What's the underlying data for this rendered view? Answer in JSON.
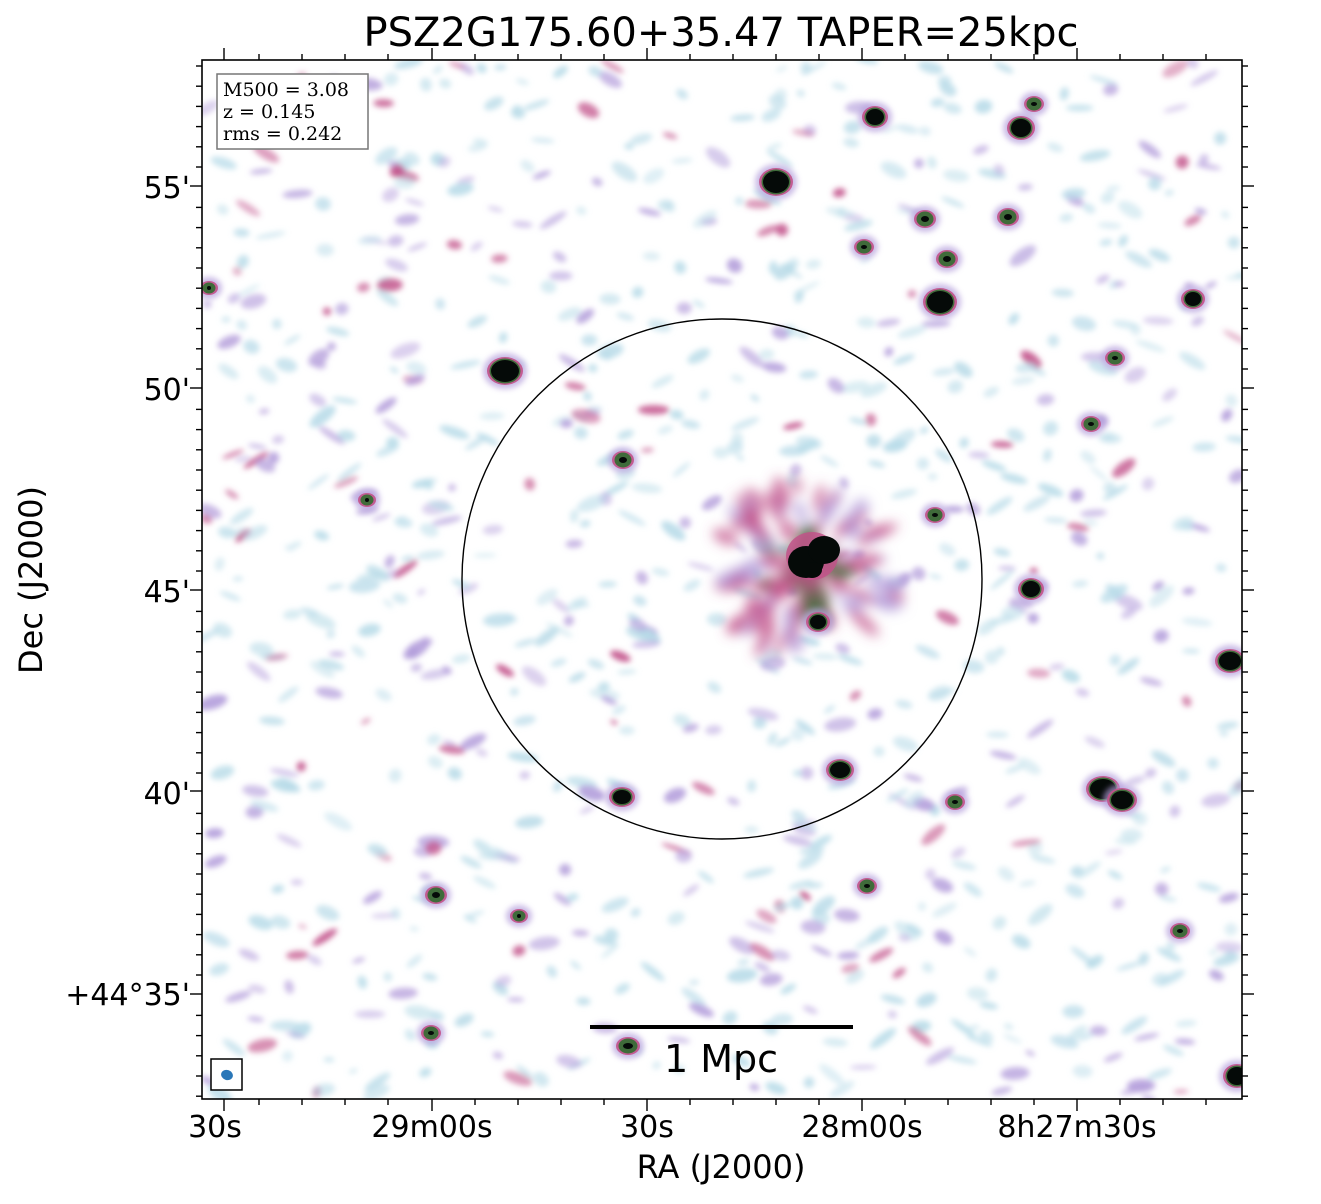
{
  "title": "PSZ2G175.60+35.47 TAPER=25kpc",
  "info_box": {
    "m500": "M500 = 3.08",
    "z": "z = 0.145",
    "rms": "rms = 0.242"
  },
  "x_axis": {
    "label": "RA (J2000)",
    "ticks": [
      "30s",
      "29m00s",
      "30s",
      "28m00s",
      "8h27m30s"
    ]
  },
  "y_axis": {
    "label": "Dec (J2000)",
    "ticks": [
      "55'",
      "50'",
      "45'",
      "40'",
      "+44°35'"
    ]
  },
  "scale_bar": {
    "label": "1 Mpc"
  },
  "colors": {
    "faint": "#b8dbe8",
    "lavender": "#b39ddb",
    "pink": "#c2528a",
    "green": "#3f6b3a",
    "core": "#050a08"
  }
}
